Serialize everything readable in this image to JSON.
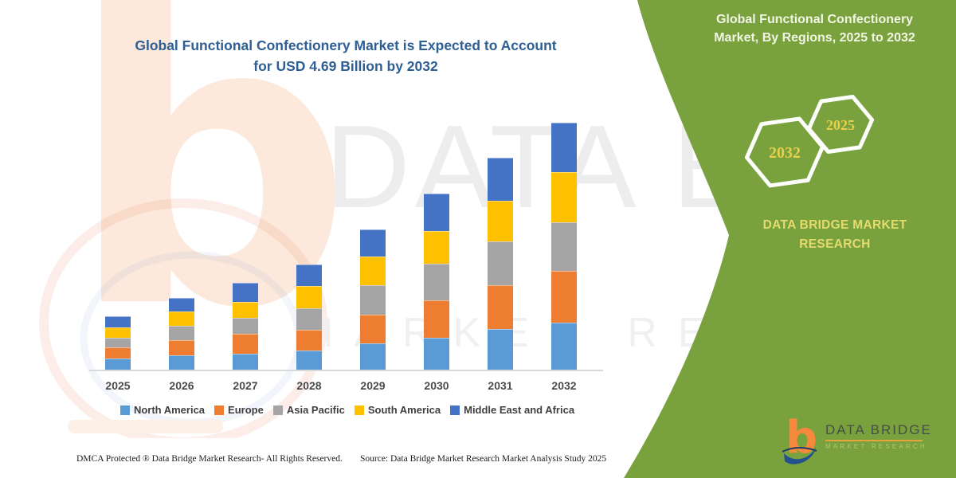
{
  "palette": {
    "green_panel": "#79A23E",
    "title_blue": "#2D5F94",
    "axis_line": "#D9D9D9",
    "label_gray": "#4A4A4A",
    "hexagon_year_yellow": "#E7D04B",
    "brand_yellow": "#E5DB6E",
    "panel_title_light": "#F1F6E3"
  },
  "main_title": {
    "line1": "Global Functional Confectionery Market is Expected to Account",
    "line2": "for USD 4.69 Billion by 2032"
  },
  "side_panel": {
    "title_line1": "Global Functional Confectionery",
    "title_line2": "Market, By Regions, 2025 to 2032",
    "hexagons": [
      {
        "label": "2032"
      },
      {
        "label": "2025"
      }
    ],
    "brand_line1": "DATA BRIDGE MARKET",
    "brand_line2": "RESEARCH"
  },
  "logo": {
    "title": "DATA BRIDGE",
    "subtitle": "MARKET RESEARCH"
  },
  "footer": {
    "dmca": "DMCA Protected ® Data Bridge Market Research-  All Rights Reserved.",
    "source": "Source: Data Bridge Market Research  Market Analysis Study 2025"
  },
  "watermark": {
    "big_letter": "b",
    "line1": "DATA BRIDGE",
    "line2": "MARKET RESEARCH"
  },
  "chart_data": {
    "type": "bar",
    "stacked": true,
    "title": "Global Functional Confectionery Market is Expected to Account for USD 4.69 Billion by 2032",
    "categories": [
      "2025",
      "2026",
      "2027",
      "2028",
      "2029",
      "2030",
      "2031",
      "2032"
    ],
    "series": [
      {
        "name": "North America",
        "color": "#5B9BD5",
        "values": [
          15,
          19,
          21,
          25,
          34,
          41,
          52,
          60
        ]
      },
      {
        "name": "Europe",
        "color": "#ED7D31",
        "values": [
          14,
          19,
          25,
          26,
          36,
          47,
          55,
          65
        ]
      },
      {
        "name": "Asia Pacific",
        "color": "#A5A5A5",
        "values": [
          12,
          18,
          20,
          27,
          37,
          46,
          55,
          61
        ]
      },
      {
        "name": "South America",
        "color": "#FFC000",
        "values": [
          13,
          18,
          20,
          28,
          36,
          41,
          51,
          63
        ]
      },
      {
        "name": "Middle East and Africa",
        "color": "#4472C4",
        "values": [
          14,
          17,
          24,
          27,
          34,
          47,
          54,
          62
        ]
      }
    ],
    "units": "relative segment heights (no value axis shown in figure)",
    "stated_total_2032": "USD 4.69 Billion",
    "xlabel": "",
    "ylabel": "",
    "grid": false,
    "legend_position": "bottom"
  }
}
